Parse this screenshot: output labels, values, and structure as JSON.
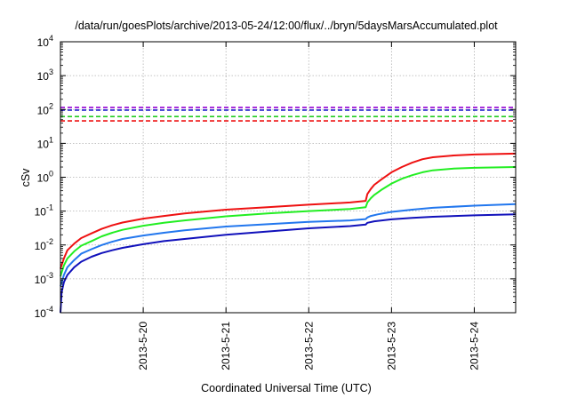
{
  "chart_data": {
    "type": "line",
    "title": "/data/run/goesPlots/archive/2013-05-24/12:00/flux/../bryn/5daysMarsAccumulated.plot",
    "xlabel": "Coordinated Universal Time (UTC)",
    "ylabel": "cSv",
    "y_scale": "log",
    "ylim": [
      0.0001,
      10000
    ],
    "y_ticks": [
      {
        "base": "10",
        "exp": "-4",
        "value": 0.0001
      },
      {
        "base": "10",
        "exp": "-3",
        "value": 0.001
      },
      {
        "base": "10",
        "exp": "-2",
        "value": 0.01
      },
      {
        "base": "10",
        "exp": "-1",
        "value": 0.1
      },
      {
        "base": "10",
        "exp": "0",
        "value": 1
      },
      {
        "base": "10",
        "exp": "1",
        "value": 10
      },
      {
        "base": "10",
        "exp": "2",
        "value": 100
      },
      {
        "base": "10",
        "exp": "3",
        "value": 1000
      },
      {
        "base": "10",
        "exp": "4",
        "value": 10000
      }
    ],
    "xlim": [
      "2013-05-19 00:00",
      "2013-05-24 12:00"
    ],
    "x_ticks": [
      {
        "label": "2013-5-20",
        "value": "2013-05-20 00:00"
      },
      {
        "label": "2013-5-21",
        "value": "2013-05-21 00:00"
      },
      {
        "label": "2013-5-22",
        "value": "2013-05-22 00:00"
      },
      {
        "label": "2013-5-23",
        "value": "2013-05-23 00:00"
      },
      {
        "label": "2013-5-24",
        "value": "2013-05-24 00:00"
      }
    ],
    "grid": true,
    "thresholds": [
      {
        "value": 115,
        "color": "#9400d3"
      },
      {
        "value": 96,
        "color": "#1a1acc"
      },
      {
        "value": 62,
        "color": "#22cc22"
      },
      {
        "value": 46,
        "color": "#ee1111"
      }
    ],
    "series": [
      {
        "color": "#ee1111",
        "points": [
          [
            "2013-05-19 00:00",
            0.002
          ],
          [
            "2013-05-19 01:00",
            0.004
          ],
          [
            "2013-05-19 02:00",
            0.007
          ],
          [
            "2013-05-19 04:00",
            0.011
          ],
          [
            "2013-05-19 06:00",
            0.016
          ],
          [
            "2013-05-19 09:00",
            0.022
          ],
          [
            "2013-05-19 12:00",
            0.03
          ],
          [
            "2013-05-19 15:00",
            0.038
          ],
          [
            "2013-05-19 18:00",
            0.046
          ],
          [
            "2013-05-20 00:00",
            0.06
          ],
          [
            "2013-05-20 06:00",
            0.072
          ],
          [
            "2013-05-20 12:00",
            0.085
          ],
          [
            "2013-05-21 00:00",
            0.11
          ],
          [
            "2013-05-21 12:00",
            0.13
          ],
          [
            "2013-05-22 00:00",
            0.155
          ],
          [
            "2013-05-22 12:00",
            0.18
          ],
          [
            "2013-05-22 16:30",
            0.2
          ],
          [
            "2013-05-22 17:00",
            0.32
          ],
          [
            "2013-05-22 18:00",
            0.45
          ],
          [
            "2013-05-22 19:00",
            0.6
          ],
          [
            "2013-05-22 21:00",
            0.85
          ],
          [
            "2013-05-23 00:00",
            1.4
          ],
          [
            "2013-05-23 03:00",
            2.0
          ],
          [
            "2013-05-23 06:00",
            2.7
          ],
          [
            "2013-05-23 09:00",
            3.4
          ],
          [
            "2013-05-23 12:00",
            3.9
          ],
          [
            "2013-05-23 18:00",
            4.4
          ],
          [
            "2013-05-24 00:00",
            4.7
          ],
          [
            "2013-05-24 12:00",
            5.0
          ]
        ]
      },
      {
        "color": "#22ee22",
        "points": [
          [
            "2013-05-19 00:00",
            0.0012
          ],
          [
            "2013-05-19 01:00",
            0.0025
          ],
          [
            "2013-05-19 02:00",
            0.004
          ],
          [
            "2013-05-19 04:00",
            0.0065
          ],
          [
            "2013-05-19 06:00",
            0.0095
          ],
          [
            "2013-05-19 09:00",
            0.013
          ],
          [
            "2013-05-19 12:00",
            0.018
          ],
          [
            "2013-05-19 15:00",
            0.023
          ],
          [
            "2013-05-19 18:00",
            0.028
          ],
          [
            "2013-05-20 00:00",
            0.037
          ],
          [
            "2013-05-20 06:00",
            0.045
          ],
          [
            "2013-05-20 12:00",
            0.053
          ],
          [
            "2013-05-21 00:00",
            0.07
          ],
          [
            "2013-05-21 12:00",
            0.085
          ],
          [
            "2013-05-22 00:00",
            0.1
          ],
          [
            "2013-05-22 12:00",
            0.115
          ],
          [
            "2013-05-22 16:30",
            0.13
          ],
          [
            "2013-05-22 17:00",
            0.18
          ],
          [
            "2013-05-22 18:00",
            0.24
          ],
          [
            "2013-05-22 19:00",
            0.3
          ],
          [
            "2013-05-22 21:00",
            0.42
          ],
          [
            "2013-05-23 00:00",
            0.65
          ],
          [
            "2013-05-23 03:00",
            0.9
          ],
          [
            "2013-05-23 06:00",
            1.15
          ],
          [
            "2013-05-23 09:00",
            1.4
          ],
          [
            "2013-05-23 12:00",
            1.6
          ],
          [
            "2013-05-23 18:00",
            1.8
          ],
          [
            "2013-05-24 00:00",
            1.9
          ],
          [
            "2013-05-24 12:00",
            2.0
          ]
        ]
      },
      {
        "color": "#2277ee",
        "points": [
          [
            "2013-05-19 00:00",
            0.0006
          ],
          [
            "2013-05-19 01:00",
            0.0013
          ],
          [
            "2013-05-19 02:00",
            0.0022
          ],
          [
            "2013-05-19 04:00",
            0.0036
          ],
          [
            "2013-05-19 06:00",
            0.0055
          ],
          [
            "2013-05-19 09:00",
            0.0075
          ],
          [
            "2013-05-19 12:00",
            0.01
          ],
          [
            "2013-05-19 15:00",
            0.0125
          ],
          [
            "2013-05-19 18:00",
            0.015
          ],
          [
            "2013-05-20 00:00",
            0.019
          ],
          [
            "2013-05-20 06:00",
            0.023
          ],
          [
            "2013-05-20 12:00",
            0.027
          ],
          [
            "2013-05-21 00:00",
            0.035
          ],
          [
            "2013-05-21 12:00",
            0.041
          ],
          [
            "2013-05-22 00:00",
            0.048
          ],
          [
            "2013-05-22 12:00",
            0.053
          ],
          [
            "2013-05-22 16:30",
            0.058
          ],
          [
            "2013-05-22 17:00",
            0.065
          ],
          [
            "2013-05-22 18:00",
            0.072
          ],
          [
            "2013-05-22 20:00",
            0.08
          ],
          [
            "2013-05-23 00:00",
            0.095
          ],
          [
            "2013-05-23 06:00",
            0.11
          ],
          [
            "2013-05-23 12:00",
            0.125
          ],
          [
            "2013-05-24 00:00",
            0.145
          ],
          [
            "2013-05-24 12:00",
            0.16
          ]
        ]
      },
      {
        "color": "#1111bb",
        "points": [
          [
            "2013-05-19 00:00",
            0.0001
          ],
          [
            "2013-05-19 00:20",
            0.0004
          ],
          [
            "2013-05-19 01:00",
            0.0008
          ],
          [
            "2013-05-19 02:00",
            0.0013
          ],
          [
            "2013-05-19 04:00",
            0.0022
          ],
          [
            "2013-05-19 06:00",
            0.0032
          ],
          [
            "2013-05-19 09:00",
            0.0045
          ],
          [
            "2013-05-19 12:00",
            0.0058
          ],
          [
            "2013-05-19 15:00",
            0.007
          ],
          [
            "2013-05-19 18:00",
            0.0082
          ],
          [
            "2013-05-20 00:00",
            0.0105
          ],
          [
            "2013-05-20 06:00",
            0.013
          ],
          [
            "2013-05-20 12:00",
            0.015
          ],
          [
            "2013-05-21 00:00",
            0.02
          ],
          [
            "2013-05-21 12:00",
            0.025
          ],
          [
            "2013-05-22 00:00",
            0.031
          ],
          [
            "2013-05-22 12:00",
            0.036
          ],
          [
            "2013-05-22 16:30",
            0.04
          ],
          [
            "2013-05-22 17:00",
            0.045
          ],
          [
            "2013-05-22 19:00",
            0.05
          ],
          [
            "2013-05-23 00:00",
            0.057
          ],
          [
            "2013-05-23 06:00",
            0.063
          ],
          [
            "2013-05-23 12:00",
            0.068
          ],
          [
            "2013-05-24 00:00",
            0.075
          ],
          [
            "2013-05-24 12:00",
            0.08
          ]
        ]
      }
    ]
  }
}
